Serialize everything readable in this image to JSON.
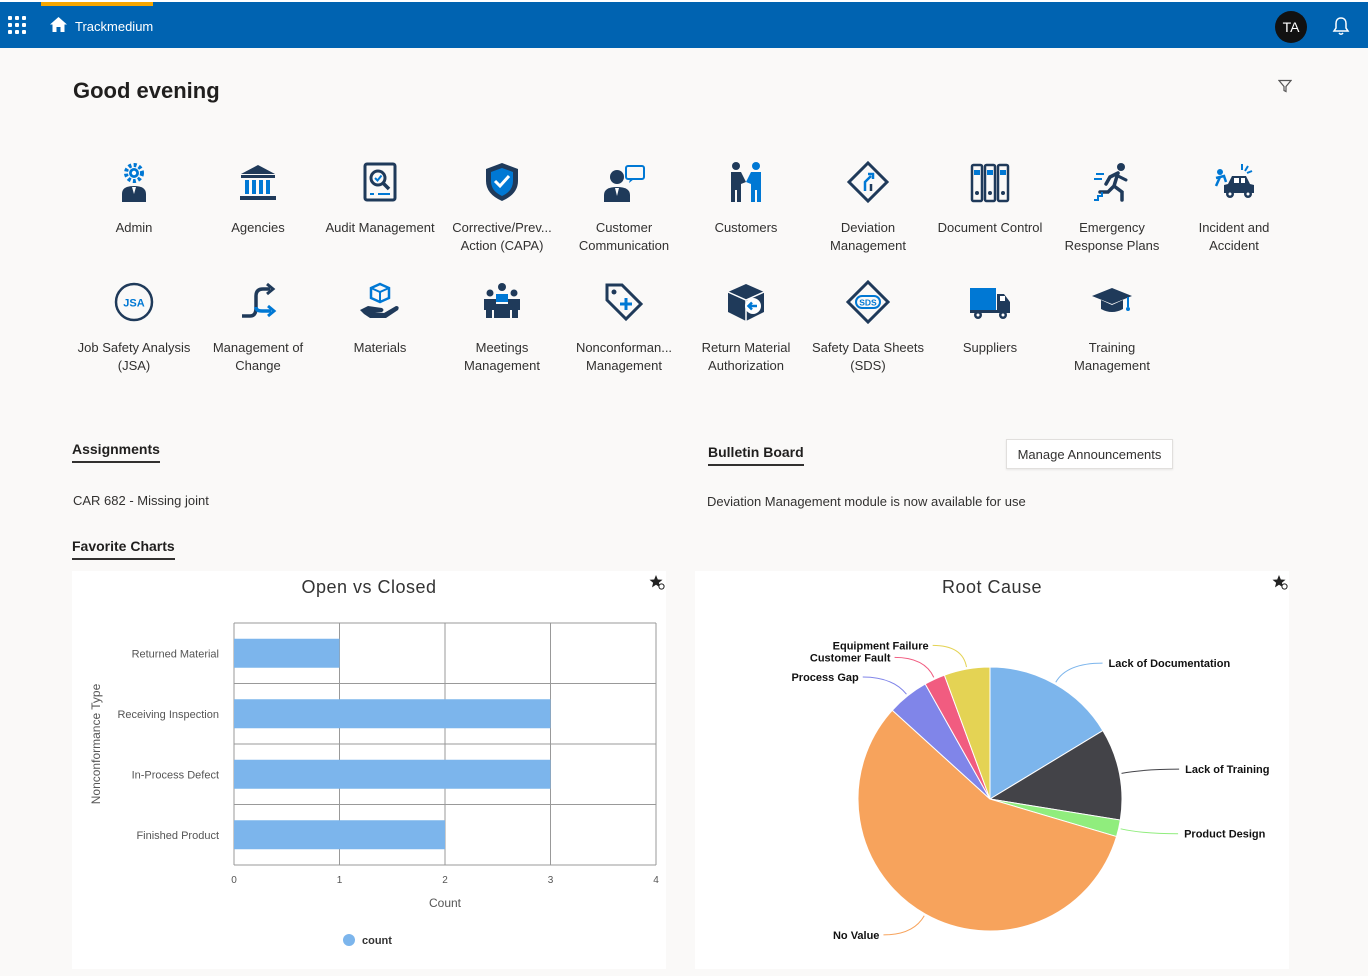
{
  "app": {
    "title": "Trackmedium",
    "user_initials": "TA"
  },
  "greeting": "Good evening",
  "modules": [
    {
      "label": "Admin",
      "icon": "admin-gear-person-icon"
    },
    {
      "label": "Agencies",
      "icon": "agencies-building-icon"
    },
    {
      "label": "Audit Management",
      "icon": "audit-magnifier-icon"
    },
    {
      "label": "Corrective/Prev... Action (CAPA)",
      "icon": "capa-shield-check-icon"
    },
    {
      "label": "Customer Communication",
      "icon": "customer-communication-icon"
    },
    {
      "label": "Customers",
      "icon": "customers-handshake-icon"
    },
    {
      "label": "Deviation Management",
      "icon": "deviation-sign-icon"
    },
    {
      "label": "Document Control",
      "icon": "document-binders-icon"
    },
    {
      "label": "Emergency Response Plans",
      "icon": "emergency-runner-icon"
    },
    {
      "label": "Incident and Accident",
      "icon": "incident-car-icon"
    },
    {
      "label": "Job Safety Analysis (JSA)",
      "icon": "jsa-badge-icon"
    },
    {
      "label": "Management of Change",
      "icon": "change-arrows-icon"
    },
    {
      "label": "Materials",
      "icon": "materials-hand-box-icon"
    },
    {
      "label": "Meetings Management",
      "icon": "meetings-people-icon"
    },
    {
      "label": "Nonconforman... Management",
      "icon": "nonconformance-tag-icon"
    },
    {
      "label": "Return Material Authorization",
      "icon": "return-box-icon"
    },
    {
      "label": "Safety Data Sheets (SDS)",
      "icon": "sds-diamond-icon"
    },
    {
      "label": "Suppliers",
      "icon": "suppliers-truck-icon"
    },
    {
      "label": "Training Management",
      "icon": "training-cap-icon"
    }
  ],
  "assignments": {
    "heading": "Assignments",
    "items": [
      "CAR 682 - Missing joint"
    ]
  },
  "bulletin": {
    "heading": "Bulletin Board",
    "button": "Manage Announcements",
    "items": [
      "Deviation Management module is now available for use"
    ]
  },
  "favorites": {
    "heading": "Favorite Charts"
  },
  "colors": {
    "brand": "#0063b1",
    "accent": "#f7a600",
    "icon": "#1f3a5a",
    "icon_accent": "#0078d4"
  },
  "chart_data": [
    {
      "type": "bar",
      "orientation": "horizontal",
      "title": "Open vs Closed",
      "categories": [
        "Returned Material",
        "Receiving Inspection",
        "In-Process Defect",
        "Finished Product"
      ],
      "series": [
        {
          "name": "count",
          "values": [
            1,
            3,
            3,
            2
          ],
          "color": "#7cb5ec"
        }
      ],
      "xlabel": "Count",
      "ylabel": "Nonconformance Type",
      "xlim": [
        0,
        4
      ],
      "xticks": [
        0,
        1,
        2,
        3,
        4
      ],
      "legend": "bottom-center",
      "grid": true
    },
    {
      "type": "pie",
      "title": "Root Cause",
      "slices": [
        {
          "label": "Lack of Documentation",
          "value": 16,
          "color": "#7cb5ec"
        },
        {
          "label": "Lack of Training",
          "value": 11,
          "color": "#434348"
        },
        {
          "label": "Product Design",
          "value": 2,
          "color": "#90ed7d"
        },
        {
          "label": "No Value",
          "value": 56,
          "color": "#f7a35c"
        },
        {
          "label": "Process Gap",
          "value": 5,
          "color": "#8085e9"
        },
        {
          "label": "Customer Fault",
          "value": 2.5,
          "color": "#f15c80"
        },
        {
          "label": "Equipment Failure",
          "value": 5.5,
          "color": "#e4d354"
        }
      ]
    }
  ]
}
